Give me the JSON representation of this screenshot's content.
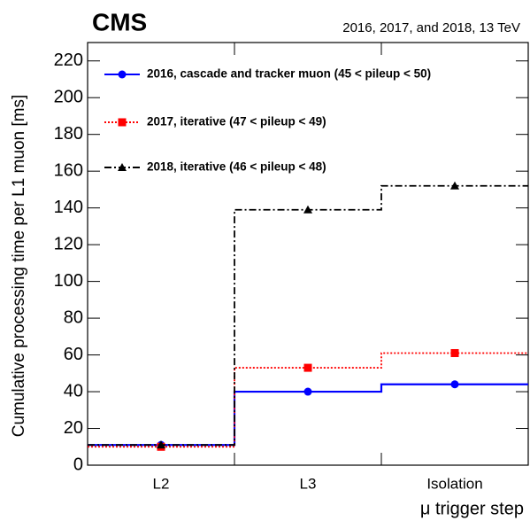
{
  "chart_data": {
    "type": "step",
    "title": "CMS",
    "subtitle": "2016, 2017, and 2018, 13 TeV",
    "x_label": "μ trigger step",
    "y_label": "Cumulative processing time per L1 muon [ms]",
    "categories": [
      "L2",
      "L3",
      "Isolation"
    ],
    "series": [
      {
        "name": "2016, cascade and tracker muon (45 < pileup < 50)",
        "color": "#0000ff",
        "line_style": "solid",
        "marker": "circle",
        "values": [
          11,
          40,
          44
        ]
      },
      {
        "name": "2017, iterative (47 < pileup < 49)",
        "color": "#ff0000",
        "line_style": "dotted",
        "marker": "square",
        "values": [
          10,
          53,
          61
        ]
      },
      {
        "name": "2018, iterative (46 < pileup < 48)",
        "color": "#000000",
        "line_style": "dashdot",
        "marker": "triangle",
        "values": [
          11,
          139,
          152
        ]
      }
    ],
    "ylim": [
      0,
      230
    ],
    "yticks": [
      0,
      20,
      40,
      60,
      80,
      100,
      120,
      140,
      160,
      180,
      200,
      220
    ]
  }
}
